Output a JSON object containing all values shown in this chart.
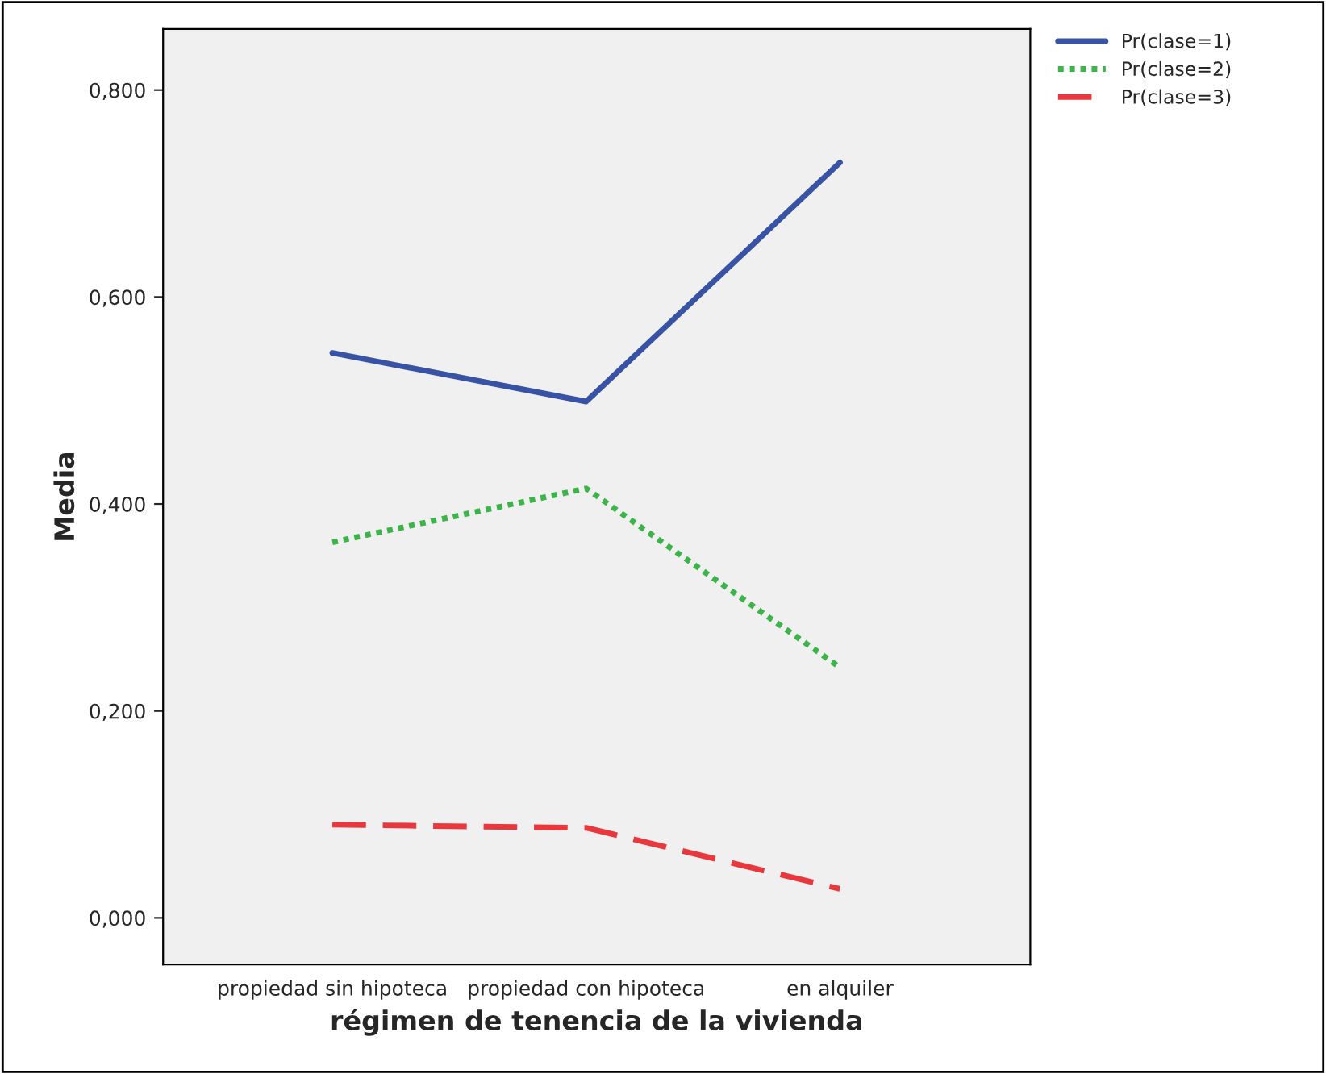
{
  "chart_data": {
    "type": "line",
    "xlabel": "régimen de tenencia de la vivienda",
    "ylabel": "Media",
    "categories": [
      "propiedad sin hipoteca",
      "propiedad con hipoteca",
      "en alquiler"
    ],
    "series": [
      {
        "name": "Pr(clase=1)",
        "color": "#3953a4",
        "line_style": "solid",
        "values": [
          0.546,
          0.499,
          0.73
        ]
      },
      {
        "name": "Pr(clase=2)",
        "color": "#3cb44a",
        "line_style": "dotted",
        "values": [
          0.363,
          0.415,
          0.242
        ]
      },
      {
        "name": "Pr(clase=3)",
        "color": "#e8383d",
        "line_style": "dashed",
        "values": [
          0.09,
          0.087,
          0.028
        ]
      }
    ],
    "ylim": [
      -0.045,
      0.859
    ],
    "yticks": [
      {
        "value": 0.0,
        "label": "0,000"
      },
      {
        "value": 0.2,
        "label": "0,200"
      },
      {
        "value": 0.4,
        "label": "0,400"
      },
      {
        "value": 0.6,
        "label": "0,600"
      },
      {
        "value": 0.8,
        "label": "0,800"
      }
    ],
    "grid": false,
    "legend": "top right",
    "marker": "none"
  }
}
